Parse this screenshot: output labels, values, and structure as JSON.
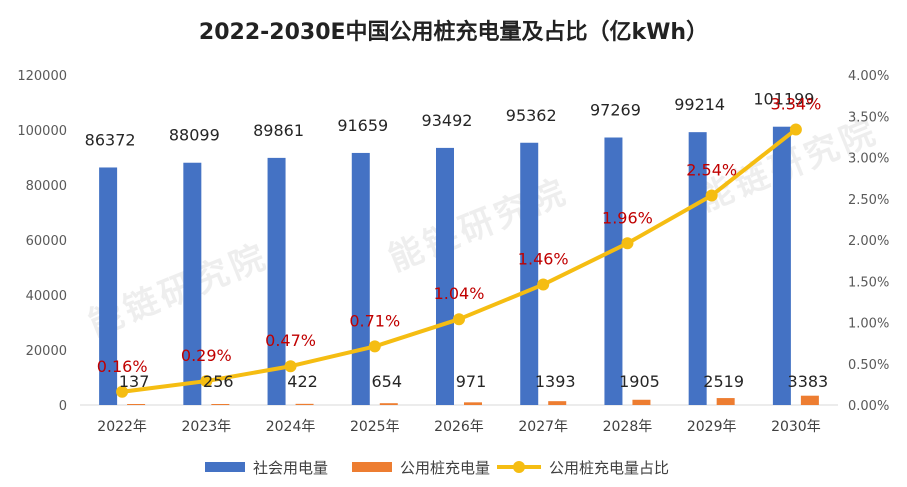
{
  "chart_data": {
    "type": "bar",
    "title": "2022-2030E中国公用桩充电量及占比（亿kWh）",
    "categories": [
      "2022年",
      "2023年",
      "2024年",
      "2025年",
      "2026年",
      "2027年",
      "2028年",
      "2029年",
      "2030年"
    ],
    "series": [
      {
        "name": "社会用电量",
        "kind": "bar",
        "axis": "left",
        "color": "#4472C4",
        "values": [
          86372,
          88099,
          89861,
          91659,
          93492,
          95362,
          97269,
          99214,
          101199
        ],
        "labels": [
          "86372",
          "88099",
          "89861",
          "91659",
          "93492",
          "95362",
          "97269",
          "99214",
          "101199"
        ]
      },
      {
        "name": "公用桩充电量",
        "kind": "bar",
        "axis": "left",
        "color": "#ED7D31",
        "values": [
          137,
          256,
          422,
          654,
          971,
          1393,
          1905,
          2519,
          3383
        ],
        "labels": [
          "137",
          "256",
          "422",
          "654",
          "971",
          "1393",
          "1905",
          "2519",
          "3383"
        ]
      },
      {
        "name": "公用桩充电量占比",
        "kind": "line",
        "axis": "right",
        "color": "#F5BD12",
        "values": [
          0.16,
          0.29,
          0.47,
          0.71,
          1.04,
          1.46,
          1.96,
          2.54,
          3.34
        ],
        "labels": [
          "0.16%",
          "0.29%",
          "0.47%",
          "0.71%",
          "1.04%",
          "1.46%",
          "1.96%",
          "2.54%",
          "3.34%"
        ],
        "label_color": "#C00000"
      }
    ],
    "ylim": [
      0,
      120000
    ],
    "y_ticks": [
      "0",
      "20000",
      "40000",
      "60000",
      "80000",
      "100000",
      "120000"
    ],
    "y2lim": [
      0,
      4
    ],
    "y2_ticks": [
      "0.00%",
      "0.50%",
      "1.00%",
      "1.50%",
      "2.00%",
      "2.50%",
      "3.00%",
      "3.50%",
      "4.00%"
    ],
    "grid": false,
    "legend": "bottom",
    "watermark": "能链研究院"
  }
}
